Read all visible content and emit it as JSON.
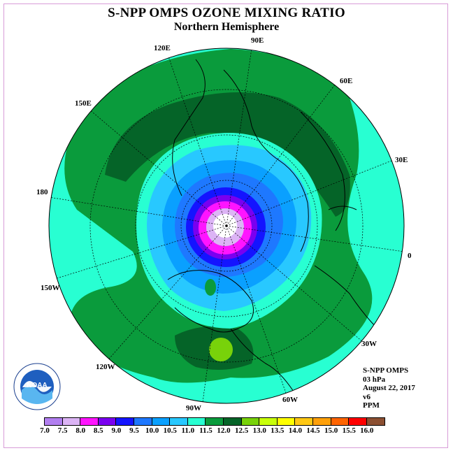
{
  "title": "S-NPP OMPS OZONE MIXING RATIO",
  "subtitle": "Northern Hemisphere",
  "longitude_labels": {
    "e90": "90E",
    "e60": "60E",
    "e30": "30E",
    "e0": "0",
    "w30": "30W",
    "w60": "60W",
    "w90": "90W",
    "w120": "120W",
    "w150": "150W",
    "e180": "180",
    "e150": "150E",
    "e120": "120E"
  },
  "info": {
    "instrument": "S-NPP OMPS",
    "level": "03 hPa",
    "date": "August 22, 2017",
    "version": "v6",
    "units": "PPM"
  },
  "logo": {
    "text": "NOAA",
    "icon": "noaa-logo-icon"
  },
  "colorbar": {
    "ticks": [
      "7.0",
      "7.5",
      "8.0",
      "8.5",
      "9.0",
      "9.5",
      "10.0",
      "10.5",
      "11.0",
      "11.5",
      "12.0",
      "12.5",
      "13.0",
      "13.5",
      "14.0",
      "14.5",
      "15.0",
      "15.5",
      "16.0"
    ],
    "colors": [
      "#b27ff0",
      "#dcb4f5",
      "#ff14ff",
      "#7a00f0",
      "#1414ff",
      "#1e78ff",
      "#0aa0ff",
      "#28c8ff",
      "#28ffd2",
      "#0a9b3c",
      "#056428",
      "#78d20a",
      "#c8ff0a",
      "#ffff00",
      "#ffc814",
      "#ffa00a",
      "#ff6400",
      "#ff0000",
      "#8c5032"
    ]
  }
}
